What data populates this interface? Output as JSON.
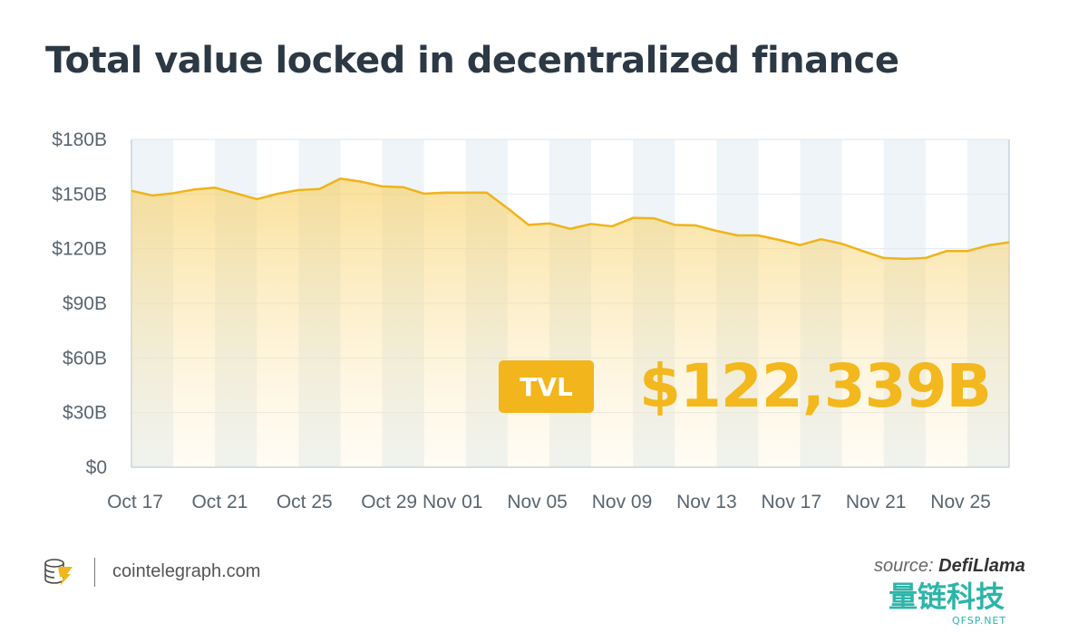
{
  "title": "Total value locked in decentralized finance",
  "chart_data": {
    "type": "area",
    "title": "Total value locked in decentralized finance",
    "xlabel": "",
    "ylabel": "",
    "ylim": [
      0,
      180
    ],
    "y_ticks": [
      "$0",
      "$30B",
      "$60B",
      "$90B",
      "$120B",
      "$150B",
      "$180B"
    ],
    "y_tick_values": [
      0,
      30,
      60,
      90,
      120,
      150,
      180
    ],
    "x_ticks": [
      "Oct 17",
      "Oct 21",
      "Oct 25",
      "Oct 29",
      "Nov 01",
      "Nov 05",
      "Nov 09",
      "Nov 13",
      "Nov 17",
      "Nov 21",
      "Nov 25"
    ],
    "x": [
      "Oct 17",
      "Oct 18",
      "Oct 19",
      "Oct 20",
      "Oct 21",
      "Oct 22",
      "Oct 23",
      "Oct 24",
      "Oct 25",
      "Oct 26",
      "Oct 27",
      "Oct 28",
      "Oct 29",
      "Oct 30",
      "Oct 31",
      "Nov 01",
      "Nov 02",
      "Nov 03",
      "Nov 04",
      "Nov 05",
      "Nov 06",
      "Nov 07",
      "Nov 08",
      "Nov 09",
      "Nov 10",
      "Nov 11",
      "Nov 12",
      "Nov 13",
      "Nov 14",
      "Nov 15",
      "Nov 16",
      "Nov 17",
      "Nov 18",
      "Nov 19",
      "Nov 20",
      "Nov 21",
      "Nov 22",
      "Nov 23",
      "Nov 24",
      "Nov 25",
      "Nov 26",
      "Nov 27",
      "Nov 28"
    ],
    "values": [
      151.8,
      149.2,
      150.5,
      152.5,
      153.5,
      150.4,
      147.2,
      150.2,
      152.2,
      152.8,
      158.5,
      156.8,
      154.2,
      153.8,
      150.2,
      150.8,
      150.8,
      150.8,
      142.2,
      133.1,
      133.9,
      130.9,
      133.6,
      132.3,
      136.9,
      136.7,
      133.1,
      132.8,
      129.8,
      127.3,
      127.3,
      124.8,
      122.0,
      125.2,
      122.7,
      118.7,
      114.9,
      114.4,
      114.9,
      118.7,
      118.7,
      121.8,
      123.5
    ],
    "unit": "billion USD",
    "grid": true,
    "line_color": "#f0b31a",
    "fill_color": "#f7cf63",
    "stripe_color": "#eef4f8"
  },
  "annotation": {
    "badge": "TVL",
    "value": "$122,339B"
  },
  "footer": {
    "site": "cointelegraph.com",
    "source_label": "source:",
    "source_name": "DefiLlama"
  },
  "watermark": {
    "text": "量链科技",
    "sub": "QFSP.NET"
  }
}
